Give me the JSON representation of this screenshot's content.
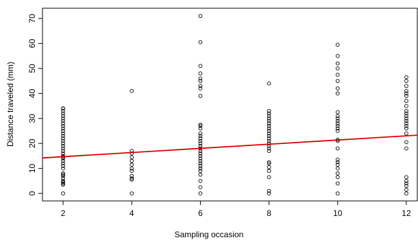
{
  "chart_data": {
    "type": "scatter",
    "xlabel": "Sampling occasion",
    "ylabel": "Distance traveled (mm)",
    "xlim": [
      1.4,
      12.32
    ],
    "ylim": [
      -3,
      74.1
    ],
    "xticks": [
      2,
      4,
      6,
      8,
      10,
      12
    ],
    "yticks": [
      0,
      10,
      20,
      30,
      40,
      50,
      60,
      70
    ],
    "series": [
      {
        "type": "scatter",
        "color": "#000000",
        "x": [
          2,
          2,
          2,
          2,
          2,
          2,
          2,
          2,
          2,
          2,
          2,
          2,
          2,
          2,
          2,
          2,
          2,
          2,
          2,
          2,
          2,
          2,
          2,
          2,
          2,
          2,
          2,
          2,
          2,
          2,
          2,
          2,
          2,
          2,
          2,
          2,
          4,
          4,
          4,
          4,
          4,
          4,
          4,
          4,
          4,
          4,
          4,
          4,
          6,
          6,
          6,
          6,
          6,
          6,
          6,
          6,
          6,
          6,
          6,
          6,
          6,
          6,
          6,
          6,
          6,
          6,
          6,
          6,
          6,
          6,
          6,
          6,
          6,
          6,
          6,
          6,
          6,
          6,
          6,
          6,
          8,
          8,
          8,
          8,
          8,
          8,
          8,
          8,
          8,
          8,
          8,
          8,
          8,
          8,
          8,
          8,
          8,
          8,
          8,
          8,
          8,
          8,
          8,
          8,
          8,
          10,
          10,
          10,
          10,
          10,
          10,
          10,
          10,
          10,
          10,
          10,
          10,
          10,
          10,
          10,
          10,
          10,
          10,
          10,
          10,
          10,
          10,
          10,
          10,
          10,
          10,
          10,
          12,
          12,
          12,
          12,
          12,
          12,
          12,
          12,
          12,
          12,
          12,
          12,
          12,
          12,
          12,
          12,
          12,
          12,
          12,
          12,
          12,
          12,
          12,
          12,
          12
        ],
        "values": [
          0,
          3.5,
          4,
          4.5,
          5,
          6,
          7,
          7.5,
          8,
          10,
          11,
          12,
          13,
          14,
          14.5,
          15,
          16,
          17,
          18,
          19,
          20,
          21,
          22,
          23,
          24,
          25,
          26,
          27,
          28,
          29,
          30,
          31,
          32,
          33,
          34,
          34,
          0,
          5.5,
          6,
          7,
          9,
          10,
          11.5,
          13,
          14.5,
          16,
          17,
          41,
          0,
          2.5,
          5,
          7.5,
          9,
          10,
          11,
          12,
          13,
          14,
          15,
          16,
          17,
          18,
          19,
          20,
          21,
          22,
          23,
          24,
          26,
          27,
          27.5,
          39,
          42,
          43,
          45,
          46,
          48,
          51,
          60.5,
          71,
          0,
          1,
          6.5,
          9,
          10.5,
          12,
          12.5,
          17,
          18,
          19,
          20,
          21,
          22,
          23,
          24,
          25,
          26,
          27,
          28,
          29,
          30,
          31,
          32,
          33,
          44,
          0,
          4,
          6.5,
          8,
          10,
          11.5,
          12.5,
          13.5,
          18,
          21,
          21.5,
          25,
          26,
          27,
          28,
          29,
          30,
          31,
          32.5,
          40,
          42,
          45,
          47.5,
          50,
          52,
          55,
          59.5,
          0,
          1.5,
          3,
          4,
          5,
          6.5,
          18,
          20.5,
          24,
          26,
          27,
          28,
          29,
          30,
          31,
          32,
          33,
          35,
          37,
          39,
          40,
          41,
          43,
          45,
          46.5
        ]
      },
      {
        "type": "line",
        "color": "#e00000",
        "x": [
          1.4,
          12.32
        ],
        "values": [
          14.2,
          23.3
        ]
      }
    ]
  }
}
